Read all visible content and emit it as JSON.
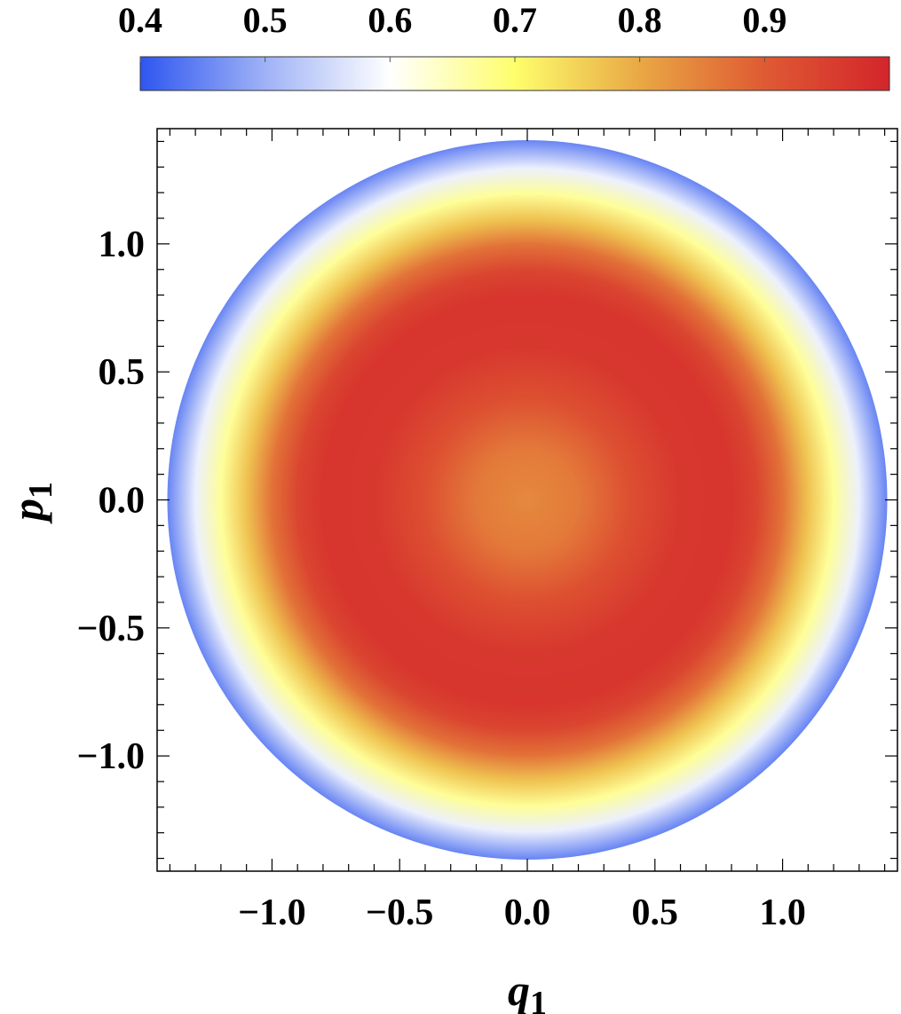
{
  "chart_data": {
    "type": "heatmap",
    "title": "",
    "xlabel": {
      "base": "q",
      "sub": "1"
    },
    "ylabel": {
      "base": "p",
      "sub": "1"
    },
    "xlim": [
      -1.45,
      1.45
    ],
    "ylim": [
      -1.45,
      1.45
    ],
    "xticks": [
      {
        "value": -1.0,
        "label": "−1.0"
      },
      {
        "value": -0.5,
        "label": "−0.5"
      },
      {
        "value": 0.0,
        "label": "0.0"
      },
      {
        "value": 0.5,
        "label": "0.5"
      },
      {
        "value": 1.0,
        "label": "1.0"
      }
    ],
    "yticks": [
      {
        "value": 1.0,
        "label": "1.0"
      },
      {
        "value": 0.5,
        "label": "0.5"
      },
      {
        "value": 0.0,
        "label": "0.0"
      },
      {
        "value": -0.5,
        "label": "−0.5"
      },
      {
        "value": -1.0,
        "label": "−1.0"
      }
    ],
    "minor_tick_step": 0.1,
    "domain": {
      "shape": "disk",
      "center": [
        0,
        0
      ],
      "radius": 1.41
    },
    "radial_profile": [
      {
        "r": 0.0,
        "value": 0.84
      },
      {
        "r": 0.2,
        "value": 0.86
      },
      {
        "r": 0.4,
        "value": 0.92
      },
      {
        "r": 0.6,
        "value": 0.965
      },
      {
        "r": 0.8,
        "value": 0.97
      },
      {
        "r": 0.9,
        "value": 0.94
      },
      {
        "r": 1.0,
        "value": 0.87
      },
      {
        "r": 1.1,
        "value": 0.77
      },
      {
        "r": 1.2,
        "value": 0.67
      },
      {
        "r": 1.3,
        "value": 0.58
      },
      {
        "r": 1.41,
        "value": 0.45
      }
    ],
    "colorbar": {
      "placement": "top",
      "range": [
        0.4,
        1.0
      ],
      "ticks": [
        {
          "value": 0.4,
          "label": "0.4"
        },
        {
          "value": 0.5,
          "label": "0.5"
        },
        {
          "value": 0.6,
          "label": "0.6"
        },
        {
          "value": 0.7,
          "label": "0.7"
        },
        {
          "value": 0.8,
          "label": "0.8"
        },
        {
          "value": 0.9,
          "label": "0.9"
        }
      ],
      "colormap": [
        {
          "value": 0.4,
          "color": "#2e56f0"
        },
        {
          "value": 0.5,
          "color": "#9fb2f6"
        },
        {
          "value": 0.6,
          "color": "#ffffff"
        },
        {
          "value": 0.7,
          "color": "#fefe6c"
        },
        {
          "value": 0.8,
          "color": "#e9a844"
        },
        {
          "value": 0.9,
          "color": "#df5a33"
        },
        {
          "value": 1.0,
          "color": "#d3252b"
        }
      ]
    },
    "grid": false,
    "frame_color": "#000000"
  }
}
